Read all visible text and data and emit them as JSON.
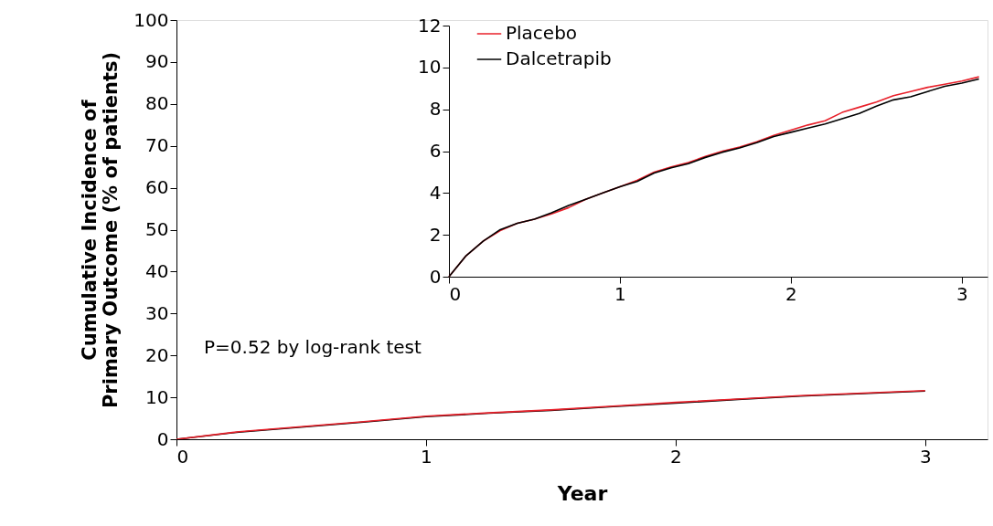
{
  "chart_data": [
    {
      "type": "line",
      "xlabel": "Year",
      "ylabel": "Cumulative Incidence of Primary Outcome (% of patients)",
      "xlim": [
        0,
        3.25
      ],
      "xticks": [
        0,
        1,
        2,
        3
      ],
      "ylim": [
        0,
        100
      ],
      "yticks": [
        0,
        10,
        20,
        30,
        40,
        50,
        60,
        70,
        80,
        90,
        100
      ],
      "grid": false,
      "legend": false,
      "annotations": [
        "P=0.52 by log-rank test"
      ],
      "x": [
        0,
        0.25,
        0.5,
        0.75,
        1,
        1.25,
        1.5,
        1.75,
        2,
        2.25,
        2.5,
        2.75,
        3
      ],
      "series": [
        {
          "color": "#000000",
          "values": [
            0,
            1.7,
            2.9,
            4.1,
            5.4,
            6.2,
            6.9,
            7.8,
            8.6,
            9.5,
            10.3,
            10.9,
            11.5
          ]
        },
        {
          "color": "#e8202a",
          "values": [
            0,
            1.8,
            3.0,
            4.2,
            5.5,
            6.3,
            7.0,
            7.9,
            8.8,
            9.6,
            10.4,
            11.0,
            11.6
          ]
        }
      ]
    },
    {
      "type": "line",
      "xlim": [
        0,
        3.15
      ],
      "xticks": [
        0,
        1,
        2,
        3
      ],
      "ylim": [
        0,
        12
      ],
      "yticks": [
        0,
        2,
        4,
        6,
        8,
        10,
        12
      ],
      "grid": false,
      "legend": "top left",
      "x": [
        0,
        0.1,
        0.2,
        0.3,
        0.4,
        0.5,
        0.6,
        0.7,
        0.8,
        0.9,
        1.0,
        1.1,
        1.2,
        1.3,
        1.4,
        1.5,
        1.6,
        1.7,
        1.8,
        1.9,
        2.0,
        2.1,
        2.2,
        2.3,
        2.4,
        2.5,
        2.6,
        2.7,
        2.8,
        2.9,
        3.0,
        3.1
      ],
      "series": [
        {
          "name": "Placebo",
          "color": "#e8202a",
          "values": [
            0,
            1.0,
            1.7,
            2.2,
            2.55,
            2.75,
            3.0,
            3.3,
            3.7,
            4.0,
            4.3,
            4.6,
            5.0,
            5.25,
            5.45,
            5.75,
            6.0,
            6.2,
            6.45,
            6.75,
            7.0,
            7.25,
            7.45,
            7.85,
            8.1,
            8.35,
            8.65,
            8.85,
            9.05,
            9.2,
            9.35,
            9.55
          ]
        },
        {
          "name": "Dalcetrapib",
          "color": "#000000",
          "values": [
            0,
            1.0,
            1.7,
            2.25,
            2.55,
            2.75,
            3.05,
            3.4,
            3.7,
            4.0,
            4.3,
            4.55,
            4.95,
            5.2,
            5.4,
            5.7,
            5.95,
            6.15,
            6.4,
            6.7,
            6.9,
            7.1,
            7.3,
            7.55,
            7.8,
            8.15,
            8.45,
            8.6,
            8.85,
            9.1,
            9.25,
            9.45
          ]
        }
      ]
    }
  ]
}
